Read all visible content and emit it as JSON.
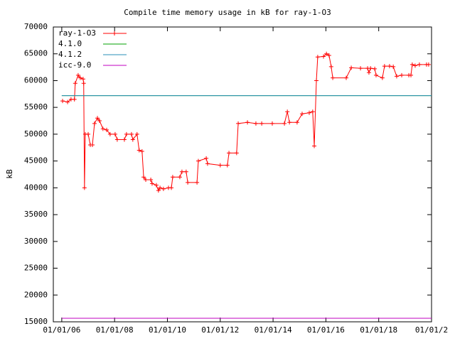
{
  "chart_data": {
    "type": "line",
    "title": "Compile time memory usage in kB for ray-1-O3",
    "y_label": "kB",
    "xlim": [
      2005.68,
      2020
    ],
    "xticks": [
      {
        "value": 2006,
        "label": "01/01/06"
      },
      {
        "value": 2008,
        "label": "01/01/08"
      },
      {
        "value": 2010,
        "label": "01/01/10"
      },
      {
        "value": 2012,
        "label": "01/01/12"
      },
      {
        "value": 2014,
        "label": "01/01/14"
      },
      {
        "value": 2016,
        "label": "01/01/16"
      },
      {
        "value": 2018,
        "label": "01/01/18"
      },
      {
        "value": 2020,
        "label": "01/01/2"
      }
    ],
    "ylim": [
      15000,
      70000
    ],
    "yticks": [
      15000,
      20000,
      25000,
      30000,
      35000,
      40000,
      45000,
      50000,
      55000,
      60000,
      65000,
      70000
    ],
    "legend": "top-left",
    "series": [
      {
        "name": "ray-1-O3",
        "color": "#ff0000",
        "marker": "+",
        "x": [
          2006.03,
          2006.22,
          2006.35,
          2006.48,
          2006.51,
          2006.62,
          2006.7,
          2006.81,
          2006.83,
          2006.86,
          2006.89,
          2007.0,
          2007.08,
          2007.16,
          2007.24,
          2007.35,
          2007.43,
          2007.56,
          2007.7,
          2007.83,
          2008.02,
          2008.1,
          2008.37,
          2008.45,
          2008.64,
          2008.69,
          2008.85,
          2008.93,
          2009.04,
          2009.1,
          2009.18,
          2009.37,
          2009.42,
          2009.58,
          2009.66,
          2009.72,
          2009.85,
          2010.04,
          2010.15,
          2010.2,
          2010.47,
          2010.55,
          2010.71,
          2010.77,
          2011.12,
          2011.17,
          2011.47,
          2011.52,
          2012.0,
          2012.27,
          2012.33,
          2012.62,
          2012.68,
          2013.03,
          2013.35,
          2013.57,
          2013.97,
          2014.43,
          2014.54,
          2014.62,
          2014.91,
          2015.1,
          2015.37,
          2015.5,
          2015.56,
          2015.64,
          2015.69,
          2015.91,
          2016.02,
          2016.12,
          2016.2,
          2016.26,
          2016.77,
          2016.96,
          2017.31,
          2017.58,
          2017.63,
          2017.69,
          2017.85,
          2017.9,
          2018.14,
          2018.22,
          2018.41,
          2018.55,
          2018.68,
          2018.87,
          2019.14,
          2019.22,
          2019.27,
          2019.38,
          2019.54,
          2019.81,
          2019.89
        ],
        "values": [
          56200,
          56000,
          56500,
          56500,
          59500,
          61000,
          60500,
          60300,
          59500,
          40000,
          50000,
          50000,
          48000,
          48000,
          52000,
          53000,
          52500,
          51000,
          50800,
          50000,
          50000,
          49000,
          49000,
          50000,
          50000,
          49000,
          50000,
          47000,
          46800,
          42000,
          41500,
          41500,
          40800,
          40500,
          39500,
          40000,
          39800,
          40000,
          40000,
          42000,
          42000,
          43000,
          43000,
          41000,
          41000,
          45000,
          45500,
          44500,
          44200,
          44200,
          46500,
          46500,
          52000,
          52200,
          52000,
          52000,
          52000,
          52000,
          54200,
          52200,
          52200,
          53800,
          54000,
          54200,
          47800,
          60000,
          64400,
          64500,
          65000,
          64700,
          62600,
          60500,
          60500,
          62400,
          62300,
          62300,
          61500,
          62300,
          62200,
          61000,
          60500,
          62700,
          62700,
          62600,
          60800,
          61000,
          61000,
          61000,
          63000,
          62800,
          63000,
          63000,
          63000
        ]
      },
      {
        "name": "4.1.0",
        "color": "#00a000",
        "x": [
          2006,
          2020
        ],
        "values": [
          57200,
          57200
        ]
      },
      {
        "name": "4.1.2",
        "color": "#2a8fb8",
        "x": [
          2006,
          2020
        ],
        "values": [
          57200,
          57200
        ]
      },
      {
        "name": "icc-9.0",
        "color": "#c000c0",
        "x": [
          2006,
          2020
        ],
        "values": [
          15660,
          15660
        ]
      }
    ]
  }
}
